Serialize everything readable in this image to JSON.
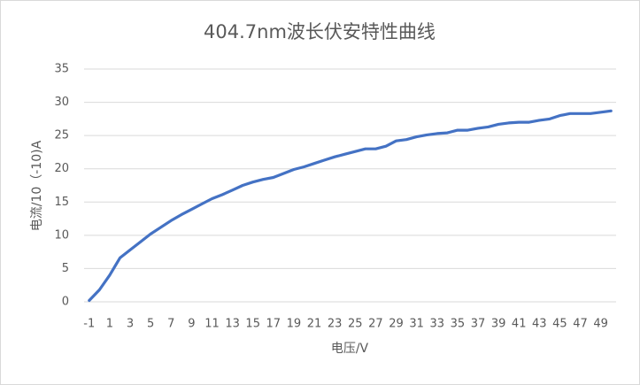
{
  "chart_data": {
    "type": "line",
    "title": "404.7nm波长伏安特性曲线",
    "x_label": "电压/V",
    "y_label": "电流/10（-10)A",
    "categories": [
      -1,
      null,
      1,
      null,
      3,
      null,
      5,
      null,
      7,
      null,
      9,
      null,
      11,
      null,
      13,
      null,
      15,
      null,
      17,
      null,
      19,
      null,
      21,
      null,
      23,
      null,
      25,
      null,
      27,
      null,
      29,
      null,
      31,
      null,
      33,
      null,
      35,
      null,
      37,
      null,
      39,
      null,
      41,
      null,
      43,
      null,
      45,
      null,
      47,
      null,
      49,
      null
    ],
    "series": [
      {
        "color": "#4472c4",
        "values": [
          0.2,
          1.8,
          4,
          6.6,
          7.8,
          9,
          10.2,
          11.2,
          12.2,
          13.1,
          13.9,
          14.7,
          15.5,
          16.1,
          16.8,
          17.5,
          18,
          18.4,
          18.7,
          19.3,
          19.9,
          20.3,
          20.8,
          21.3,
          21.8,
          22.2,
          22.6,
          23,
          23,
          23.4,
          24.2,
          24.4,
          24.8,
          25.1,
          25.3,
          25.4,
          25.8,
          25.8,
          26.1,
          26.3,
          26.7,
          26.9,
          27,
          27,
          27.3,
          27.5,
          28,
          28.3,
          28.3,
          28.3,
          28.5,
          28.7
        ]
      }
    ],
    "ylim": [
      0,
      35
    ],
    "yticks": [
      0,
      5,
      10,
      15,
      20,
      25,
      30,
      35
    ],
    "grid": true
  }
}
